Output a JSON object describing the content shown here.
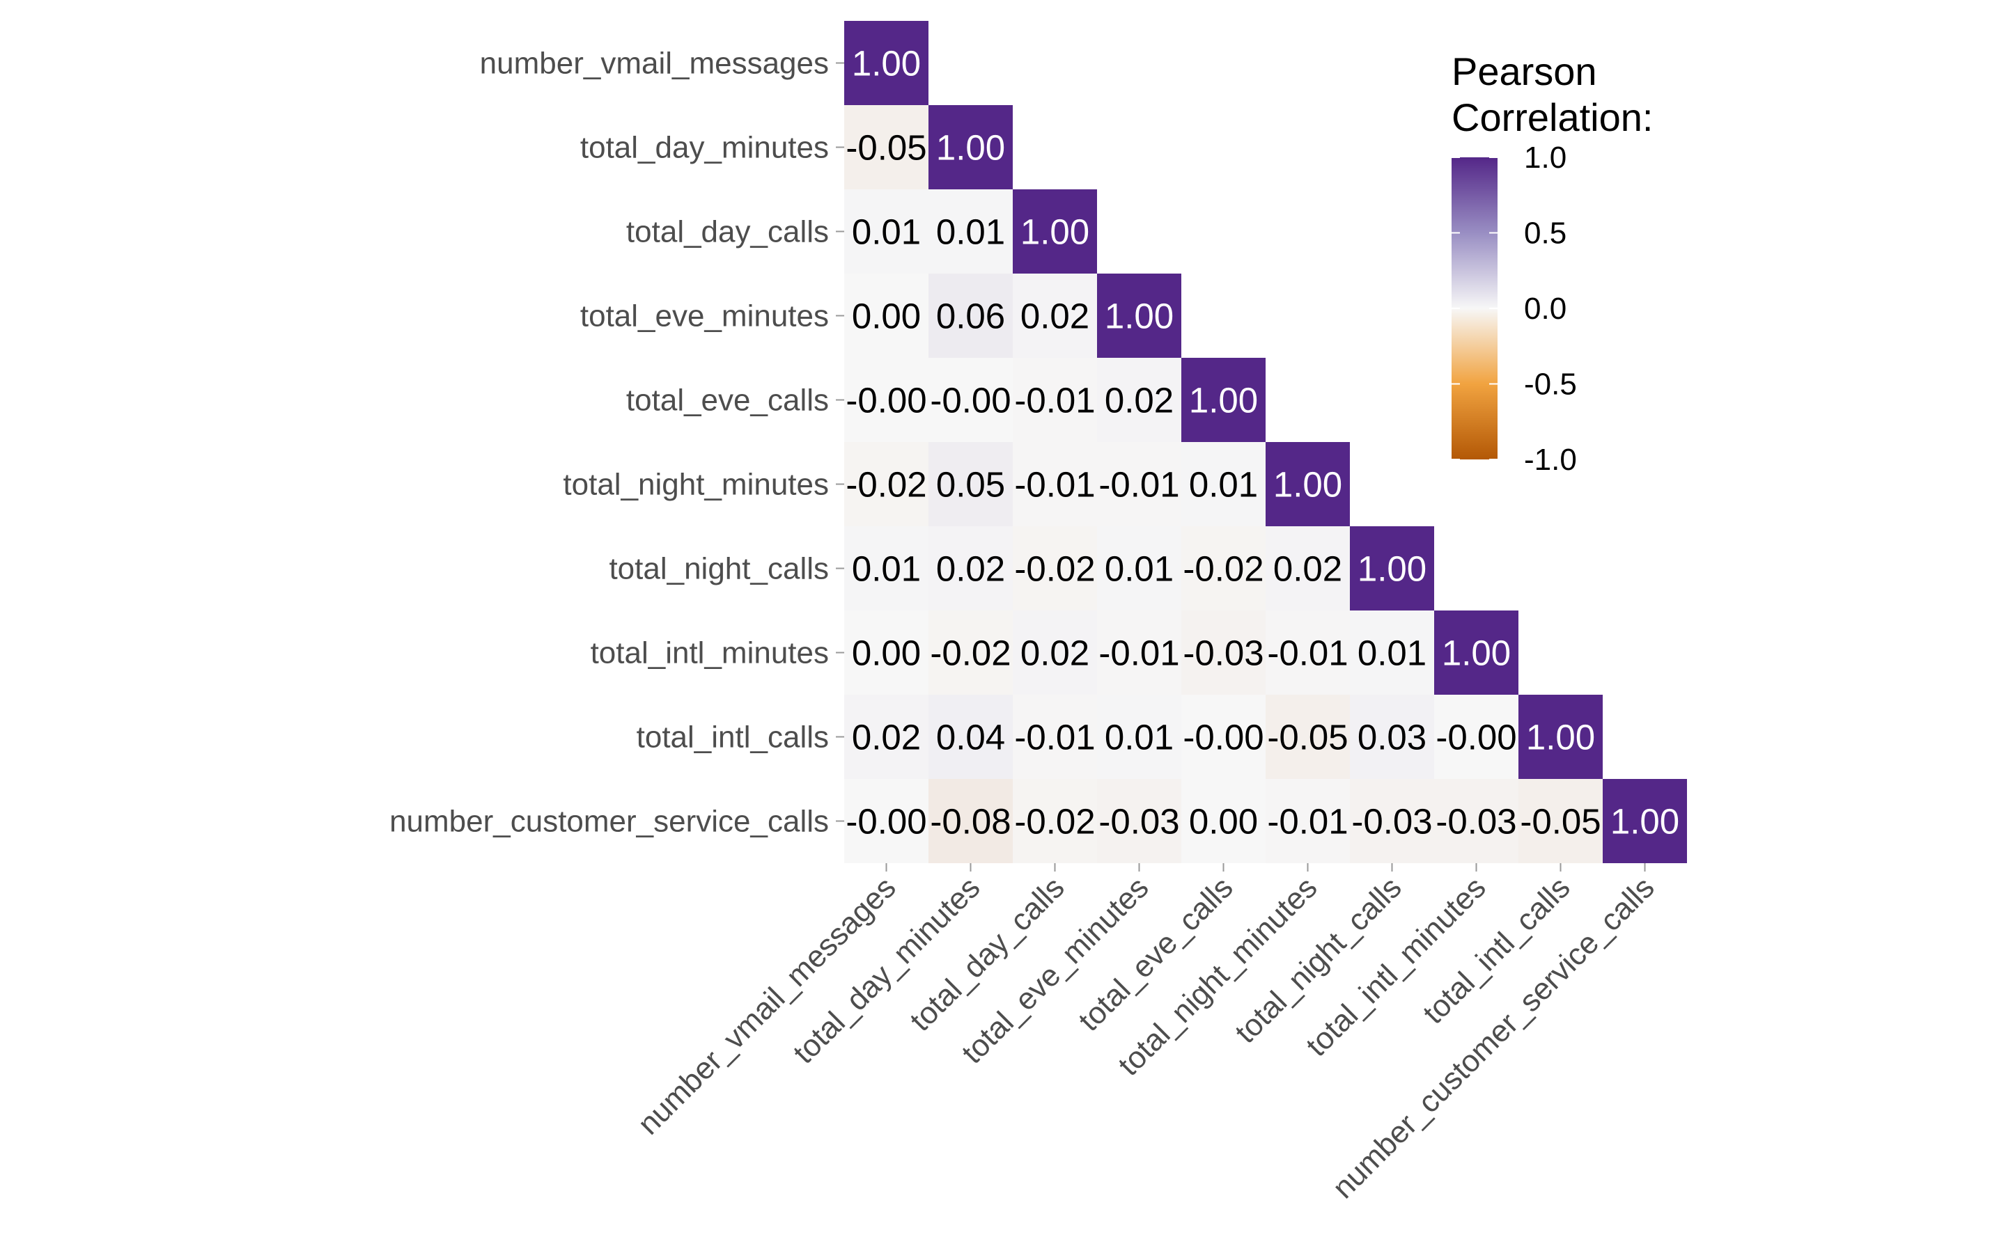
{
  "chart_data": {
    "type": "heatmap",
    "variables": [
      "number_vmail_messages",
      "total_day_minutes",
      "total_day_calls",
      "total_eve_minutes",
      "total_eve_calls",
      "total_night_minutes",
      "total_night_calls",
      "total_intl_minutes",
      "total_intl_calls",
      "number_customer_service_calls"
    ],
    "lower_triangle_values": [
      [
        1.0
      ],
      [
        -0.05,
        1.0
      ],
      [
        0.01,
        0.01,
        1.0
      ],
      [
        0.0,
        0.06,
        0.02,
        1.0
      ],
      [
        -0.0,
        -0.0,
        -0.01,
        0.02,
        1.0
      ],
      [
        -0.02,
        0.05,
        -0.01,
        -0.01,
        0.01,
        1.0
      ],
      [
        0.01,
        0.02,
        -0.02,
        0.01,
        -0.02,
        0.02,
        1.0
      ],
      [
        0.0,
        -0.02,
        0.02,
        -0.01,
        -0.03,
        -0.01,
        0.01,
        1.0
      ],
      [
        0.02,
        0.04,
        -0.01,
        0.01,
        -0.0,
        -0.05,
        0.03,
        -0.0,
        1.0
      ],
      [
        -0.0,
        -0.08,
        -0.02,
        -0.03,
        0.0,
        -0.01,
        -0.03,
        -0.03,
        -0.05,
        1.0
      ]
    ],
    "lower_triangle_labels": [
      [
        "1.00"
      ],
      [
        "-0.05",
        "1.00"
      ],
      [
        "0.01",
        "0.01",
        "1.00"
      ],
      [
        "0.00",
        "0.06",
        "0.02",
        "1.00"
      ],
      [
        "-0.00",
        "-0.00",
        "-0.01",
        "0.02",
        "1.00"
      ],
      [
        "-0.02",
        "0.05",
        "-0.01",
        "-0.01",
        "0.01",
        "1.00"
      ],
      [
        "0.01",
        "0.02",
        "-0.02",
        "0.01",
        "-0.02",
        "0.02",
        "1.00"
      ],
      [
        "0.00",
        "-0.02",
        "0.02",
        "-0.01",
        "-0.03",
        "-0.01",
        "0.01",
        "1.00"
      ],
      [
        "0.02",
        "0.04",
        "-0.01",
        "0.01",
        "-0.00",
        "-0.05",
        "0.03",
        "-0.00",
        "1.00"
      ],
      [
        "-0.00",
        "-0.08",
        "-0.02",
        "-0.03",
        "0.00",
        "-0.01",
        "-0.03",
        "-0.03",
        "-0.05",
        "1.00"
      ]
    ],
    "color_scale": {
      "min": -1.0,
      "mid": 0.0,
      "max": 1.0,
      "low_color": "#b35806",
      "mid_color": "#f7f7f7",
      "high_color": "#542788"
    },
    "legend": {
      "title_lines": [
        "Pearson",
        "Correlation:"
      ],
      "ticks": [
        1.0,
        0.5,
        0.0,
        -0.5,
        -1.0
      ],
      "tick_labels": [
        "1.0",
        "0.5",
        "0.0",
        "-0.5",
        "-1.0"
      ],
      "position": "top-right"
    },
    "grid": false
  }
}
